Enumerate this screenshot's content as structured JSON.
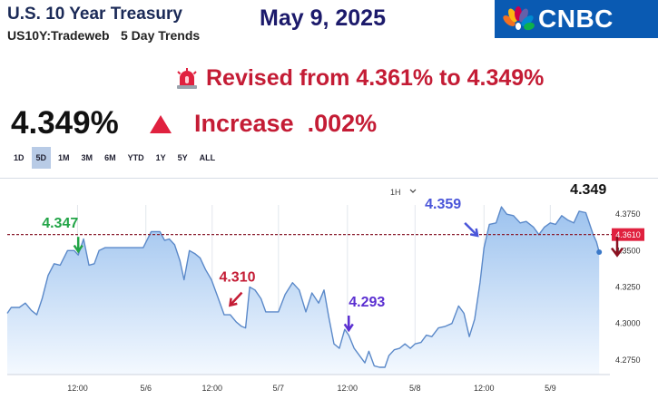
{
  "header": {
    "title": "U.S. 10 Year Treasury",
    "symbol": "US10Y:Tradeweb",
    "trend_label": "5 Day Trends",
    "date": "May 9, 2025",
    "logo_text": "CNBC"
  },
  "revision_note": "Revised from 4.361% to 4.349%",
  "quote": {
    "price": "4.349%",
    "direction": "up",
    "change_text": "Increase  .002%",
    "up_color": "#e0213f"
  },
  "ranges": {
    "items": [
      "1D",
      "5D",
      "1M",
      "3M",
      "6M",
      "YTD",
      "1Y",
      "5Y",
      "ALL"
    ],
    "active": "5D"
  },
  "interval": "1H",
  "colors": {
    "accent_red": "#c41c35",
    "line": "#5b89c9",
    "fill_top": "#9cc2ee",
    "fill_bottom": "#f4f9ff",
    "marker": "#e0213f",
    "green": "#22a447",
    "purple": "#5b2fd1",
    "blue": "#4a55d9",
    "logo_bg": "#0a5ab2"
  },
  "chart_data": {
    "type": "area",
    "ylim": [
      4.265,
      4.395
    ],
    "y_ticks": [
      {
        "value": 4.375,
        "label": "4.3750"
      },
      {
        "value": 4.35,
        "label": "4.3500"
      },
      {
        "value": 4.325,
        "label": "4.3250"
      },
      {
        "value": 4.3,
        "label": "4.3000"
      },
      {
        "value": 4.275,
        "label": "4.2750"
      }
    ],
    "x_ticks": [
      {
        "x": 10.5,
        "label": "12:00"
      },
      {
        "x": 20.7,
        "label": "5/6"
      },
      {
        "x": 30.6,
        "label": "12:00"
      },
      {
        "x": 40.5,
        "label": "5/7"
      },
      {
        "x": 50.8,
        "label": "12:00"
      },
      {
        "x": 60.9,
        "label": "5/8"
      },
      {
        "x": 71.2,
        "label": "12:00"
      },
      {
        "x": 81.1,
        "label": "5/9"
      }
    ],
    "x_range": [
      0,
      90
    ],
    "series": [
      {
        "values": [
          [
            0,
            4.307
          ],
          [
            0.6,
            4.311
          ],
          [
            1.8,
            4.311
          ],
          [
            2.7,
            4.314
          ],
          [
            3.6,
            4.309
          ],
          [
            4.4,
            4.306
          ],
          [
            5.2,
            4.317
          ],
          [
            6.1,
            4.333
          ],
          [
            7.0,
            4.341
          ],
          [
            7.9,
            4.34
          ],
          [
            9.0,
            4.35
          ],
          [
            10.0,
            4.35
          ],
          [
            10.6,
            4.347
          ],
          [
            11.4,
            4.358
          ],
          [
            12.2,
            4.34
          ],
          [
            13.0,
            4.341
          ],
          [
            13.7,
            4.35
          ],
          [
            14.6,
            4.352
          ],
          [
            15.5,
            4.352
          ],
          [
            17.2,
            4.352
          ],
          [
            19.0,
            4.352
          ],
          [
            20.3,
            4.352
          ],
          [
            21.5,
            4.363
          ],
          [
            22.8,
            4.363
          ],
          [
            23.5,
            4.357
          ],
          [
            24.2,
            4.358
          ],
          [
            25.0,
            4.354
          ],
          [
            25.8,
            4.343
          ],
          [
            26.4,
            4.33
          ],
          [
            27.2,
            4.35
          ],
          [
            28.0,
            4.348
          ],
          [
            28.8,
            4.345
          ],
          [
            29.6,
            4.337
          ],
          [
            30.5,
            4.33
          ],
          [
            31.3,
            4.32
          ],
          [
            32.4,
            4.306
          ],
          [
            33.3,
            4.306
          ],
          [
            34.2,
            4.301
          ],
          [
            35.0,
            4.298
          ],
          [
            35.6,
            4.297
          ],
          [
            36.2,
            4.325
          ],
          [
            37.0,
            4.323
          ],
          [
            37.9,
            4.317
          ],
          [
            38.6,
            4.308
          ],
          [
            39.6,
            4.308
          ],
          [
            40.5,
            4.308
          ],
          [
            41.5,
            4.32
          ],
          [
            42.6,
            4.328
          ],
          [
            43.6,
            4.323
          ],
          [
            44.6,
            4.308
          ],
          [
            45.5,
            4.321
          ],
          [
            46.5,
            4.314
          ],
          [
            47.3,
            4.323
          ],
          [
            48.0,
            4.305
          ],
          [
            48.8,
            4.286
          ],
          [
            49.6,
            4.283
          ],
          [
            50.4,
            4.296
          ],
          [
            51.0,
            4.292
          ],
          [
            51.8,
            4.283
          ],
          [
            52.6,
            4.278
          ],
          [
            53.4,
            4.273
          ],
          [
            54.0,
            4.281
          ],
          [
            54.8,
            4.271
          ],
          [
            55.6,
            4.27
          ],
          [
            56.4,
            4.27
          ],
          [
            57.0,
            4.278
          ],
          [
            57.8,
            4.282
          ],
          [
            58.6,
            4.283
          ],
          [
            59.4,
            4.286
          ],
          [
            60.2,
            4.283
          ],
          [
            60.9,
            4.286
          ],
          [
            61.8,
            4.287
          ],
          [
            62.6,
            4.292
          ],
          [
            63.4,
            4.291
          ],
          [
            64.4,
            4.297
          ],
          [
            65.4,
            4.298
          ],
          [
            66.4,
            4.3
          ],
          [
            67.4,
            4.312
          ],
          [
            68.2,
            4.307
          ],
          [
            69.0,
            4.291
          ],
          [
            69.8,
            4.303
          ],
          [
            70.6,
            4.328
          ],
          [
            71.2,
            4.352
          ],
          [
            72.0,
            4.368
          ],
          [
            73.0,
            4.369
          ],
          [
            73.8,
            4.38
          ],
          [
            74.6,
            4.375
          ],
          [
            75.6,
            4.374
          ],
          [
            76.6,
            4.369
          ],
          [
            77.5,
            4.37
          ],
          [
            78.6,
            4.366
          ],
          [
            79.4,
            4.361
          ],
          [
            80.2,
            4.366
          ],
          [
            81.1,
            4.369
          ],
          [
            81.9,
            4.368
          ],
          [
            82.8,
            4.374
          ],
          [
            83.7,
            4.371
          ],
          [
            84.6,
            4.369
          ],
          [
            85.4,
            4.377
          ],
          [
            86.4,
            4.376
          ],
          [
            87.5,
            4.361
          ],
          [
            88.0,
            4.356
          ],
          [
            88.4,
            4.349
          ]
        ]
      }
    ],
    "reference_line": {
      "value": 4.361,
      "label": "4.3610"
    },
    "last_value_label": "4.349",
    "annotations": [
      {
        "label": "4.347",
        "color": "green",
        "arrow": "down",
        "x": 10.6,
        "y": 4.347
      },
      {
        "label": "4.310",
        "color": "red",
        "arrow": "down-left",
        "x": 33.0,
        "y": 4.31
      },
      {
        "label": "4.293",
        "color": "purple",
        "arrow": "down",
        "x": 51.0,
        "y": 4.293
      },
      {
        "label": "4.359",
        "color": "blue",
        "arrow": "down-right",
        "x": 70.5,
        "y": 4.359
      }
    ]
  }
}
